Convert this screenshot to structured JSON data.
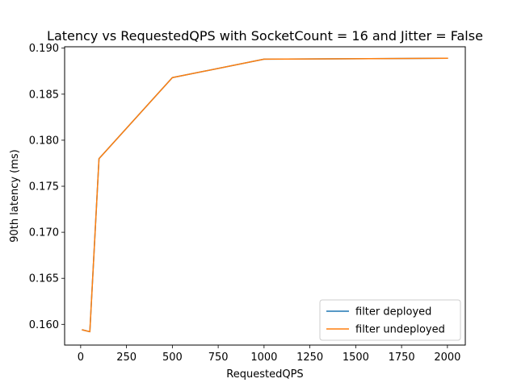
{
  "chart_data": {
    "type": "line",
    "title": "Latency vs RequestedQPS with SocketCount = 16 and Jitter = False",
    "xlabel": "RequestedQPS",
    "ylabel": "90th latency (ms)",
    "xlim": [
      -87.5,
      2097.5
    ],
    "ylim": [
      0.15775,
      0.19015
    ],
    "xticks": [
      0,
      250,
      500,
      750,
      1000,
      1250,
      1500,
      1750,
      2000
    ],
    "yticks": [
      0.16,
      0.165,
      0.17,
      0.175,
      0.18,
      0.185,
      0.19
    ],
    "xtick_labels": [
      "0",
      "250",
      "500",
      "750",
      "1000",
      "1250",
      "1500",
      "1750",
      "2000"
    ],
    "ytick_labels": [
      "0.160",
      "0.165",
      "0.170",
      "0.175",
      "0.180",
      "0.185",
      "0.190"
    ],
    "grid": false,
    "legend_position": "lower-right",
    "series": [
      {
        "name": "filter deployed",
        "color": "#1f77b4",
        "x": [
          10,
          50,
          100,
          500,
          1000,
          2000
        ],
        "y": [
          0.1594,
          0.1592,
          0.178,
          0.1868,
          0.1888,
          0.1889
        ]
      },
      {
        "name": "filter undeployed",
        "color": "#ff7f0e",
        "x": [
          10,
          50,
          100,
          500,
          1000,
          2000
        ],
        "y": [
          0.1594,
          0.1592,
          0.178,
          0.1868,
          0.1888,
          0.1889
        ]
      }
    ]
  }
}
